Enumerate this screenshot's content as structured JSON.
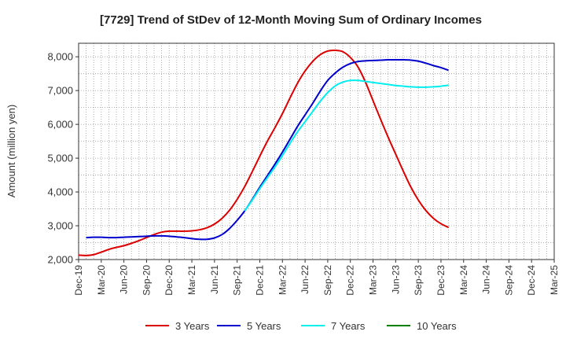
{
  "chart_data": {
    "type": "line",
    "title": "[7729]  Trend of StDev of 12-Month Moving Sum of Ordinary Incomes",
    "xlabel": "",
    "ylabel": "Amount (million yen)",
    "ylim": [
      2000,
      8400
    ],
    "yticks": [
      2000,
      3000,
      4000,
      5000,
      6000,
      7000,
      8000
    ],
    "ytick_labels": [
      "2,000",
      "3,000",
      "4,000",
      "5,000",
      "6,000",
      "7,000",
      "8,000"
    ],
    "x_labels": [
      "Dec-19",
      "Mar-20",
      "Jun-20",
      "Sep-20",
      "Dec-20",
      "Mar-21",
      "Jun-21",
      "Sep-21",
      "Dec-21",
      "Mar-22",
      "Jun-22",
      "Sep-22",
      "Dec-22",
      "Mar-23",
      "Jun-23",
      "Sep-23",
      "Dec-23",
      "Mar-24",
      "Jun-24",
      "Sep-24",
      "Dec-24",
      "Mar-25"
    ],
    "grid": true,
    "legend_position": "bottom",
    "series": [
      {
        "name": "3 Years",
        "color": "#dd0000",
        "values": [
          2130,
          2120,
          2145,
          2220,
          2300,
          2360,
          2410,
          2480,
          2560,
          2650,
          2740,
          2810,
          2840,
          2840,
          2840,
          2850,
          2880,
          2940,
          3050,
          3220,
          3460,
          3780,
          4160,
          4600,
          5060,
          5500,
          5900,
          6320,
          6780,
          7220,
          7580,
          7860,
          8060,
          8170,
          8190,
          8150,
          7980,
          7700,
          7250,
          6700,
          6150,
          5620,
          5120,
          4620,
          4150,
          3760,
          3450,
          3220,
          3060,
          2950
        ]
      },
      {
        "name": "5 Years",
        "color": "#0000cc",
        "values": [
          null,
          2650,
          2660,
          2660,
          2650,
          2650,
          2660,
          2670,
          2680,
          2690,
          2700,
          2700,
          2690,
          2670,
          2650,
          2620,
          2600,
          2600,
          2640,
          2740,
          2920,
          3160,
          3440,
          3780,
          4140,
          4480,
          4820,
          5180,
          5560,
          5940,
          6280,
          6620,
          6980,
          7300,
          7520,
          7690,
          7800,
          7860,
          7880,
          7890,
          7900,
          7910,
          7910,
          7910,
          7900,
          7870,
          7810,
          7740,
          7680,
          7600
        ]
      },
      {
        "name": "7 Years",
        "color": "#00eeee",
        "values": [
          null,
          null,
          null,
          null,
          null,
          null,
          null,
          null,
          null,
          null,
          null,
          null,
          null,
          null,
          null,
          null,
          null,
          null,
          null,
          null,
          null,
          null,
          3440,
          3760,
          4100,
          4420,
          4740,
          5080,
          5440,
          5780,
          6080,
          6380,
          6680,
          6940,
          7140,
          7250,
          7300,
          7300,
          7270,
          7240,
          7210,
          7180,
          7150,
          7130,
          7110,
          7100,
          7100,
          7110,
          7130,
          7160
        ]
      },
      {
        "name": "10 Years",
        "color": "#008000",
        "values": []
      }
    ]
  }
}
